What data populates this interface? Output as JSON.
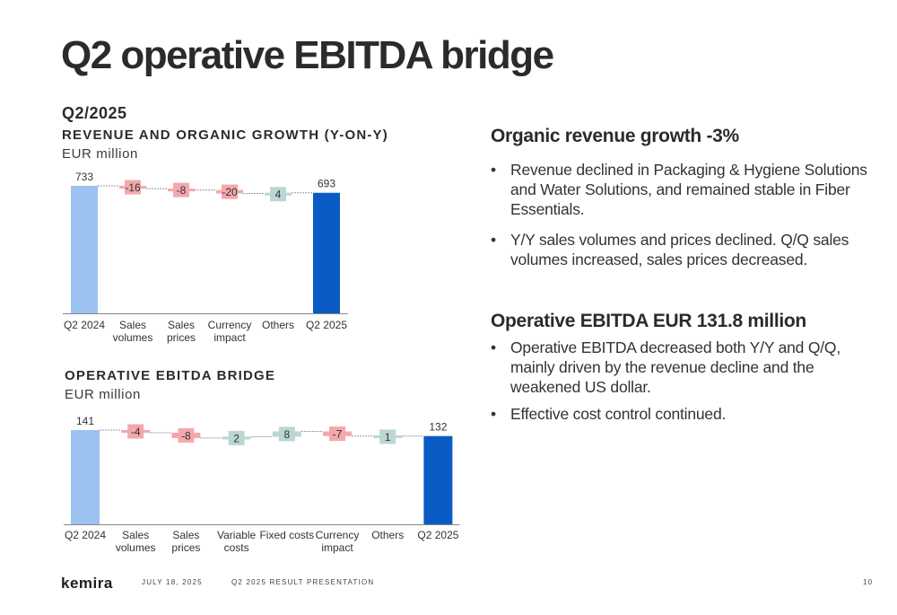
{
  "slide": {
    "title": "Q2 operative EBITDA bridge",
    "period": "Q2/2025"
  },
  "colors": {
    "start_bar": "#9bc2f0",
    "end_bar": "#0a5bc4",
    "negative": "#f4a8ad",
    "positive": "#bcd6d4",
    "connector": "#9a9a9a",
    "axis": "#888888"
  },
  "chart_data": [
    {
      "type": "waterfall",
      "title": "REVENUE AND ORGANIC GROWTH (Y-ON-Y)",
      "unit": "EUR million",
      "categories": [
        [
          "Q2 2024"
        ],
        [
          "Sales",
          "volumes"
        ],
        [
          "Sales",
          "prices"
        ],
        [
          "Currency",
          "impact"
        ],
        [
          "Others"
        ],
        [
          "Q2 2025"
        ]
      ],
      "values": [
        733,
        -16,
        -8,
        -20,
        4,
        693
      ],
      "labels": [
        "733",
        "-16",
        "-8",
        "-20",
        "4",
        "693"
      ],
      "kinds": [
        "total",
        "delta",
        "delta",
        "delta",
        "delta",
        "total"
      ],
      "ylim": [
        0,
        733
      ]
    },
    {
      "type": "waterfall",
      "title": "OPERATIVE EBITDA BRIDGE",
      "unit": "EUR million",
      "categories": [
        [
          "Q2 2024"
        ],
        [
          "Sales",
          "volumes"
        ],
        [
          "Sales",
          "prices"
        ],
        [
          "Variable",
          "costs"
        ],
        [
          "Fixed costs"
        ],
        [
          "Currency",
          "impact"
        ],
        [
          "Others"
        ],
        [
          "Q2 2025"
        ]
      ],
      "values": [
        141,
        -4,
        -8,
        2,
        8,
        -7,
        1,
        132
      ],
      "labels": [
        "141",
        "-4",
        "-8",
        "2",
        "8",
        "-7",
        "1",
        "132"
      ],
      "kinds": [
        "total",
        "delta",
        "delta",
        "delta",
        "delta",
        "delta",
        "delta",
        "total"
      ],
      "ylim": [
        0,
        141
      ]
    }
  ],
  "sections": [
    {
      "heading": "Organic revenue growth -3%",
      "bullets": [
        "Revenue declined in Packaging & Hygiene Solutions and Water Solutions, and remained stable in Fiber Essentials.",
        "Y/Y sales volumes and prices declined. Q/Q sales volumes increased, sales prices decreased."
      ]
    },
    {
      "heading": "Operative EBITDA EUR 131.8 million",
      "bullets": [
        "Operative EBITDA decreased both Y/Y and Q/Q, mainly driven by the revenue decline and the weakened US dollar.",
        "Effective cost control continued."
      ]
    }
  ],
  "footer": {
    "logo": "kemira",
    "date": "JULY 18, 2025",
    "presentation": "Q2 2025 RESULT PRESENTATION",
    "page": "10"
  },
  "bullet_glyph": "•"
}
